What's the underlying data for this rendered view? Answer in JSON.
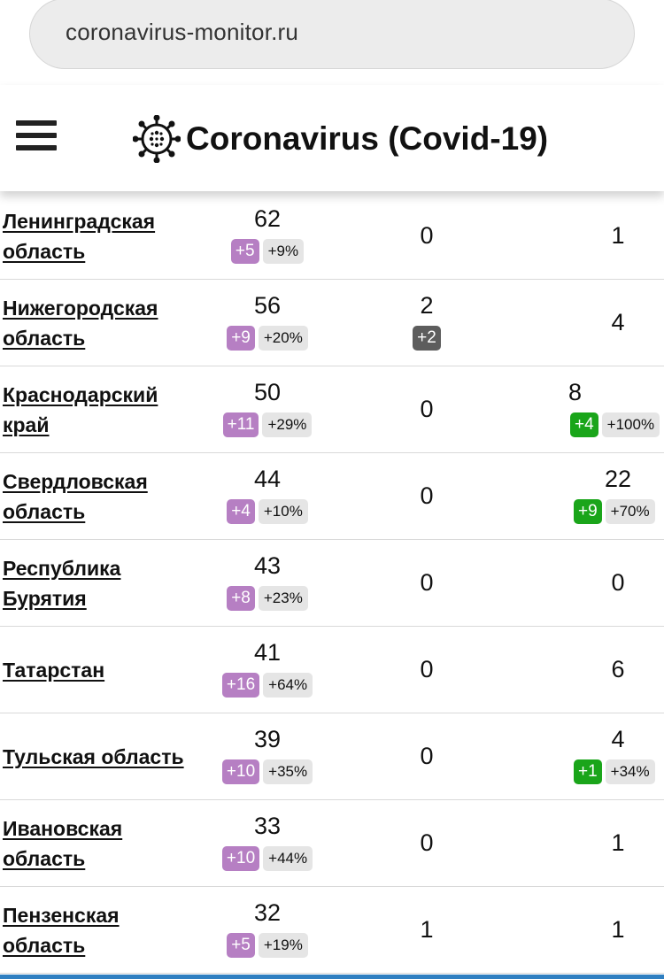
{
  "browser": {
    "url": "coronavirus-monitor.ru"
  },
  "header": {
    "title": "Coronavirus (Covid-19)",
    "menu_icon": "hamburger-menu-icon",
    "logo_icon": "virus-icon"
  },
  "colors": {
    "case_badge": "#b67fc3",
    "death_badge": "#5d5d5d",
    "recovered_badge": "#1aa51a",
    "percent_badge": "#e5e5e5",
    "bottom_bar": "#2f7fc1"
  },
  "rows": [
    {
      "region": "Ленинградская область",
      "cases": "62",
      "cases_delta": "+5",
      "cases_pct": "+9%",
      "deaths": "0",
      "deaths_delta": "",
      "recovered": "1",
      "recovered_delta": "",
      "recovered_pct": ""
    },
    {
      "region": "Нижегородская область",
      "cases": "56",
      "cases_delta": "+9",
      "cases_pct": "+20%",
      "deaths": "2",
      "deaths_delta": "+2",
      "recovered": "4",
      "recovered_delta": "",
      "recovered_pct": ""
    },
    {
      "region": "Краснодарский край",
      "cases": "50",
      "cases_delta": "+11",
      "cases_pct": "+29%",
      "deaths": "0",
      "deaths_delta": "",
      "recovered": "8",
      "recovered_delta": "+4",
      "recovered_pct": "+100%"
    },
    {
      "region": "Свердловская область",
      "cases": "44",
      "cases_delta": "+4",
      "cases_pct": "+10%",
      "deaths": "0",
      "deaths_delta": "",
      "recovered": "22",
      "recovered_delta": "+9",
      "recovered_pct": "+70%"
    },
    {
      "region": "Республика Бурятия",
      "cases": "43",
      "cases_delta": "+8",
      "cases_pct": "+23%",
      "deaths": "0",
      "deaths_delta": "",
      "recovered": "0",
      "recovered_delta": "",
      "recovered_pct": ""
    },
    {
      "region": "Татарстан",
      "cases": "41",
      "cases_delta": "+16",
      "cases_pct": "+64%",
      "deaths": "0",
      "deaths_delta": "",
      "recovered": "6",
      "recovered_delta": "",
      "recovered_pct": ""
    },
    {
      "region": "Тульская область",
      "cases": "39",
      "cases_delta": "+10",
      "cases_pct": "+35%",
      "deaths": "0",
      "deaths_delta": "",
      "recovered": "4",
      "recovered_delta": "+1",
      "recovered_pct": "+34%"
    },
    {
      "region": "Ивановская область",
      "cases": "33",
      "cases_delta": "+10",
      "cases_pct": "+44%",
      "deaths": "0",
      "deaths_delta": "",
      "recovered": "1",
      "recovered_delta": "",
      "recovered_pct": ""
    },
    {
      "region": "Пензенская область",
      "cases": "32",
      "cases_delta": "+5",
      "cases_pct": "+19%",
      "deaths": "1",
      "deaths_delta": "",
      "recovered": "1",
      "recovered_delta": "",
      "recovered_pct": ""
    }
  ]
}
